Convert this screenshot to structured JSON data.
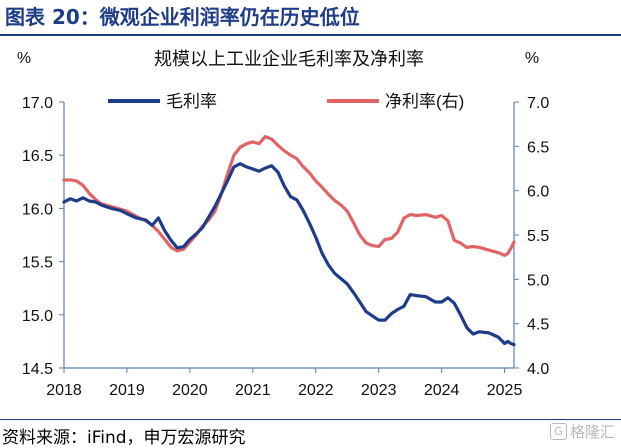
{
  "figure": {
    "title": "图表 20：微观企业利润率仍在历史低位",
    "source": "资料来源：iFind，申万宏源研究",
    "watermark": "格隆汇",
    "watermark_icon": "gelonghui-logo-icon"
  },
  "chart_data": {
    "type": "line",
    "title": "规模以上工业企业毛利率及净利率",
    "left_unit": "%",
    "right_unit": "%",
    "colors": {
      "gross_margin": "#1f3c8a",
      "net_margin": "#e06466",
      "axis": "#5a7fb8"
    },
    "x_axis": {
      "ticks": [
        "2018",
        "2019",
        "2020",
        "2021",
        "2022",
        "2023",
        "2024",
        "2025"
      ],
      "range": [
        2018.0,
        2025.15
      ]
    },
    "left_axis": {
      "range": [
        14.5,
        17.0
      ],
      "ticks": [
        "14.5",
        "15.0",
        "15.5",
        "16.0",
        "16.5",
        "17.0"
      ]
    },
    "right_axis": {
      "range": [
        4.0,
        7.0
      ],
      "ticks": [
        "4.0",
        "4.5",
        "5.0",
        "5.5",
        "6.0",
        "6.5",
        "7.0"
      ]
    },
    "legend_position": "top",
    "grid": false,
    "series": [
      {
        "name": "毛利率",
        "axis": "left",
        "color": "#1f3c8a",
        "points": [
          [
            2018.0,
            16.06
          ],
          [
            2018.1,
            16.09
          ],
          [
            2018.2,
            16.07
          ],
          [
            2018.3,
            16.1
          ],
          [
            2018.4,
            16.07
          ],
          [
            2018.5,
            16.06
          ],
          [
            2018.6,
            16.03
          ],
          [
            2018.75,
            16.0
          ],
          [
            2018.9,
            15.98
          ],
          [
            2019.0,
            15.95
          ],
          [
            2019.15,
            15.91
          ],
          [
            2019.3,
            15.89
          ],
          [
            2019.4,
            15.84
          ],
          [
            2019.5,
            15.91
          ],
          [
            2019.6,
            15.79
          ],
          [
            2019.7,
            15.7
          ],
          [
            2019.8,
            15.63
          ],
          [
            2019.9,
            15.64
          ],
          [
            2020.0,
            15.71
          ],
          [
            2020.1,
            15.76
          ],
          [
            2020.2,
            15.82
          ],
          [
            2020.3,
            15.92
          ],
          [
            2020.4,
            16.02
          ],
          [
            2020.5,
            16.14
          ],
          [
            2020.6,
            16.26
          ],
          [
            2020.7,
            16.39
          ],
          [
            2020.8,
            16.42
          ],
          [
            2020.9,
            16.39
          ],
          [
            2021.0,
            16.37
          ],
          [
            2021.1,
            16.35
          ],
          [
            2021.2,
            16.38
          ],
          [
            2021.3,
            16.4
          ],
          [
            2021.4,
            16.34
          ],
          [
            2021.5,
            16.21
          ],
          [
            2021.6,
            16.11
          ],
          [
            2021.7,
            16.08
          ],
          [
            2021.8,
            15.98
          ],
          [
            2021.9,
            15.86
          ],
          [
            2022.0,
            15.73
          ],
          [
            2022.1,
            15.58
          ],
          [
            2022.2,
            15.47
          ],
          [
            2022.3,
            15.39
          ],
          [
            2022.4,
            15.34
          ],
          [
            2022.5,
            15.29
          ],
          [
            2022.6,
            15.21
          ],
          [
            2022.7,
            15.12
          ],
          [
            2022.8,
            15.03
          ],
          [
            2022.9,
            14.99
          ],
          [
            2023.0,
            14.95
          ],
          [
            2023.1,
            14.95
          ],
          [
            2023.2,
            15.01
          ],
          [
            2023.3,
            15.05
          ],
          [
            2023.4,
            15.08
          ],
          [
            2023.5,
            15.19
          ],
          [
            2023.6,
            15.18
          ],
          [
            2023.75,
            15.17
          ],
          [
            2023.9,
            15.12
          ],
          [
            2024.0,
            15.12
          ],
          [
            2024.1,
            15.16
          ],
          [
            2024.2,
            15.11
          ],
          [
            2024.3,
            15.0
          ],
          [
            2024.4,
            14.88
          ],
          [
            2024.5,
            14.82
          ],
          [
            2024.6,
            14.84
          ],
          [
            2024.75,
            14.83
          ],
          [
            2024.9,
            14.79
          ],
          [
            2025.0,
            14.73
          ],
          [
            2025.05,
            14.75
          ],
          [
            2025.1,
            14.73
          ],
          [
            2025.15,
            14.72
          ]
        ]
      },
      {
        "name": "净利率(右)",
        "axis": "right",
        "color": "#e06466",
        "points": [
          [
            2018.0,
            6.12
          ],
          [
            2018.1,
            6.12
          ],
          [
            2018.2,
            6.11
          ],
          [
            2018.3,
            6.06
          ],
          [
            2018.4,
            5.97
          ],
          [
            2018.5,
            5.9
          ],
          [
            2018.6,
            5.85
          ],
          [
            2018.75,
            5.82
          ],
          [
            2018.9,
            5.79
          ],
          [
            2019.0,
            5.77
          ],
          [
            2019.15,
            5.71
          ],
          [
            2019.3,
            5.66
          ],
          [
            2019.4,
            5.61
          ],
          [
            2019.5,
            5.54
          ],
          [
            2019.6,
            5.45
          ],
          [
            2019.7,
            5.36
          ],
          [
            2019.8,
            5.32
          ],
          [
            2019.9,
            5.34
          ],
          [
            2020.0,
            5.42
          ],
          [
            2020.1,
            5.5
          ],
          [
            2020.2,
            5.6
          ],
          [
            2020.3,
            5.67
          ],
          [
            2020.4,
            5.77
          ],
          [
            2020.5,
            5.96
          ],
          [
            2020.6,
            6.19
          ],
          [
            2020.7,
            6.4
          ],
          [
            2020.8,
            6.49
          ],
          [
            2020.9,
            6.53
          ],
          [
            2021.0,
            6.55
          ],
          [
            2021.1,
            6.53
          ],
          [
            2021.2,
            6.61
          ],
          [
            2021.3,
            6.58
          ],
          [
            2021.4,
            6.51
          ],
          [
            2021.5,
            6.45
          ],
          [
            2021.6,
            6.4
          ],
          [
            2021.7,
            6.36
          ],
          [
            2021.8,
            6.27
          ],
          [
            2021.9,
            6.2
          ],
          [
            2022.0,
            6.11
          ],
          [
            2022.1,
            6.04
          ],
          [
            2022.2,
            5.96
          ],
          [
            2022.3,
            5.89
          ],
          [
            2022.4,
            5.84
          ],
          [
            2022.5,
            5.77
          ],
          [
            2022.6,
            5.64
          ],
          [
            2022.7,
            5.5
          ],
          [
            2022.8,
            5.41
          ],
          [
            2022.9,
            5.38
          ],
          [
            2023.0,
            5.37
          ],
          [
            2023.1,
            5.45
          ],
          [
            2023.2,
            5.46
          ],
          [
            2023.3,
            5.53
          ],
          [
            2023.4,
            5.69
          ],
          [
            2023.5,
            5.73
          ],
          [
            2023.6,
            5.72
          ],
          [
            2023.75,
            5.73
          ],
          [
            2023.9,
            5.7
          ],
          [
            2024.0,
            5.72
          ],
          [
            2024.1,
            5.66
          ],
          [
            2024.2,
            5.44
          ],
          [
            2024.3,
            5.41
          ],
          [
            2024.4,
            5.36
          ],
          [
            2024.5,
            5.37
          ],
          [
            2024.6,
            5.36
          ],
          [
            2024.75,
            5.33
          ],
          [
            2024.9,
            5.3
          ],
          [
            2025.0,
            5.27
          ],
          [
            2025.05,
            5.29
          ],
          [
            2025.1,
            5.35
          ],
          [
            2025.15,
            5.42
          ]
        ]
      }
    ]
  }
}
